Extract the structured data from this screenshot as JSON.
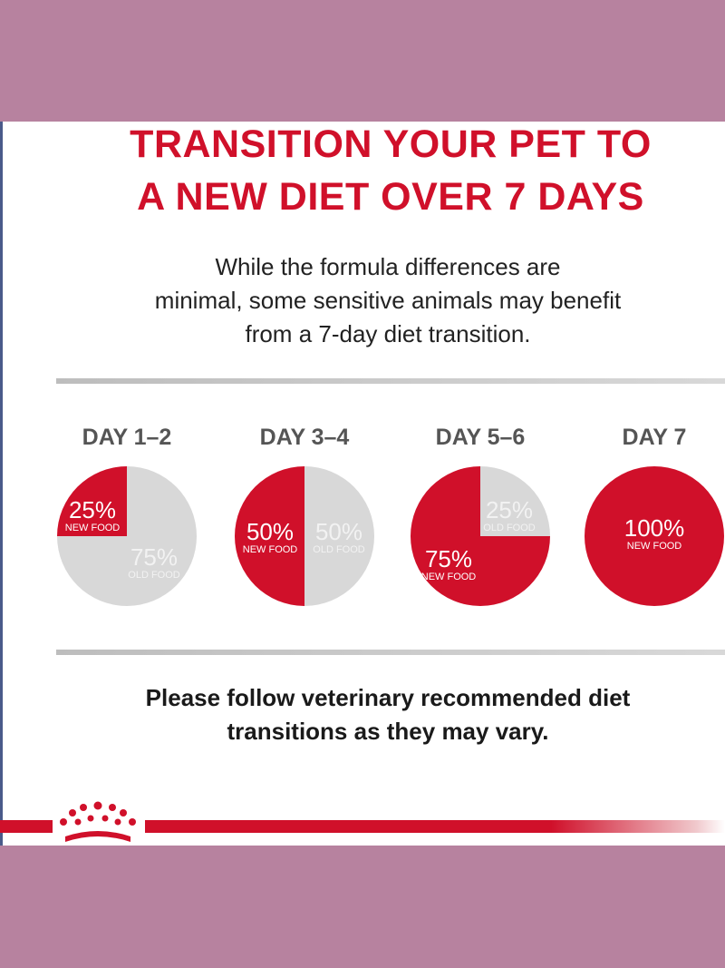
{
  "header": {
    "title_line1": "TRANSITION YOUR PET TO",
    "title_line2": "A NEW DIET OVER 7 DAYS"
  },
  "intro": {
    "line1": "While the formula differences are",
    "line2": "minimal, some sensitive animals may benefit",
    "line3": "from a 7-day diet transition."
  },
  "footer": {
    "line1": "Please follow veterinary recommended diet",
    "line2": "transitions as they may vary."
  },
  "colors": {
    "new_food": "#d0102a",
    "old_food": "#d8d8d8",
    "new_text": "#ffffff",
    "old_text": "#f2f2f2",
    "background": "#b7829f"
  },
  "chart_data": {
    "type": "pie",
    "charts": [
      {
        "day": "DAY 1–2",
        "new_pct": 25,
        "old_pct": 75,
        "new_label": "25%",
        "new_sub": "NEW FOOD",
        "old_label": "75%",
        "old_sub": "OLD FOOD"
      },
      {
        "day": "DAY 3–4",
        "new_pct": 50,
        "old_pct": 50,
        "new_label": "50%",
        "new_sub": "NEW FOOD",
        "old_label": "50%",
        "old_sub": "OLD FOOD"
      },
      {
        "day": "DAY 5–6",
        "new_pct": 75,
        "old_pct": 25,
        "new_label": "75%",
        "new_sub": "NEW FOOD",
        "old_label": "25%",
        "old_sub": "OLD FOOD"
      },
      {
        "day": "DAY 7",
        "new_pct": 100,
        "old_pct": 0,
        "new_label": "100%",
        "new_sub": "NEW FOOD",
        "old_label": "",
        "old_sub": ""
      }
    ]
  }
}
